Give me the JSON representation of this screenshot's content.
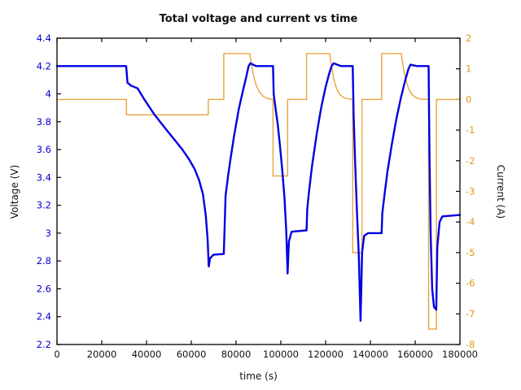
{
  "chart_data": {
    "type": "line",
    "title": "Total voltage and current vs time",
    "xlabel": "time (s)",
    "ylabel_left": "Voltage (V)",
    "ylabel_right": "Current (A)",
    "grid": false,
    "legend": "none",
    "xlim": [
      0,
      180000
    ],
    "ylim_left": [
      2.2,
      4.4
    ],
    "ylim_right": [
      -8,
      2
    ],
    "x_ticks": {
      "values": [
        0,
        20000,
        40000,
        60000,
        80000,
        100000,
        120000,
        140000,
        160000,
        180000
      ],
      "labels": [
        "0",
        "20000",
        "40000",
        "60000",
        "80000",
        "100000",
        "120000",
        "140000",
        "160000",
        "180000"
      ]
    },
    "y_left_ticks": {
      "values": [
        4.4,
        4.2,
        4.0,
        3.8,
        3.6,
        3.4,
        3.2,
        3.0,
        2.8,
        2.6,
        2.4,
        2.2
      ],
      "labels": [
        "4.4",
        "4.2",
        "4",
        "3.8",
        "3.6",
        "3.4",
        "3.2",
        "3",
        "2.8",
        "2.6",
        "2.4",
        "2.2"
      ]
    },
    "y_right_ticks": {
      "values": [
        2,
        1,
        0,
        -1,
        -2,
        -3,
        -4,
        -5,
        -6,
        -7,
        -8
      ],
      "labels": [
        "2",
        "1",
        "0",
        "-1",
        "-2",
        "-3",
        "-4",
        "-5",
        "-6",
        "-7",
        "-8"
      ]
    },
    "colors": {
      "voltage": "#0000e0",
      "current": "#e8a33d",
      "tick_label_left": "#0000cd",
      "tick_label_right": "#dd9a1d",
      "frame": "#000000",
      "title": "#111111"
    },
    "series": [
      {
        "name": "Total current",
        "axis": "right",
        "color": "#e8a33d",
        "width": 1.4,
        "points": [
          [
            0,
            0
          ],
          [
            31000,
            0
          ],
          [
            31000,
            -0.5
          ],
          [
            67600,
            -0.5
          ],
          [
            67600,
            0
          ],
          [
            74500,
            0
          ],
          [
            74500,
            1.5
          ],
          [
            86100,
            1.5
          ],
          [
            86900,
            1.12
          ],
          [
            87800,
            0.78
          ],
          [
            89000,
            0.45
          ],
          [
            90500,
            0.24
          ],
          [
            92000,
            0.11
          ],
          [
            94000,
            0.03
          ],
          [
            96500,
            0
          ],
          [
            96500,
            -2.5
          ],
          [
            103000,
            -2.5
          ],
          [
            103000,
            0
          ],
          [
            111500,
            0
          ],
          [
            111500,
            1.5
          ],
          [
            121800,
            1.5
          ],
          [
            122700,
            1.05
          ],
          [
            123700,
            0.65
          ],
          [
            124900,
            0.35
          ],
          [
            126300,
            0.16
          ],
          [
            128300,
            0.05
          ],
          [
            131000,
            0.01
          ],
          [
            132100,
            0
          ],
          [
            132100,
            -5
          ],
          [
            136200,
            -5
          ],
          [
            136200,
            0
          ],
          [
            145000,
            0
          ],
          [
            145000,
            1.5
          ],
          [
            153800,
            1.5
          ],
          [
            154700,
            1.05
          ],
          [
            155700,
            0.66
          ],
          [
            157000,
            0.36
          ],
          [
            158600,
            0.16
          ],
          [
            160600,
            0.05
          ],
          [
            162600,
            0.01
          ],
          [
            166000,
            0
          ],
          [
            166000,
            -7.5
          ],
          [
            169500,
            -7.5
          ],
          [
            169500,
            0
          ],
          [
            180000,
            0
          ]
        ]
      },
      {
        "name": "Total voltage",
        "axis": "left",
        "color": "#0000e0",
        "width": 2.4,
        "points": [
          [
            0,
            4.2
          ],
          [
            30900,
            4.2
          ],
          [
            31500,
            4.08
          ],
          [
            33000,
            4.06
          ],
          [
            36000,
            4.04
          ],
          [
            39000,
            3.96
          ],
          [
            43600,
            3.85
          ],
          [
            47000,
            3.78
          ],
          [
            50000,
            3.72
          ],
          [
            53000,
            3.66
          ],
          [
            56000,
            3.6
          ],
          [
            59000,
            3.53
          ],
          [
            61500,
            3.46
          ],
          [
            63500,
            3.38
          ],
          [
            65200,
            3.28
          ],
          [
            66500,
            3.12
          ],
          [
            67300,
            2.95
          ],
          [
            67800,
            2.76
          ],
          [
            68400,
            2.82
          ],
          [
            69900,
            2.845
          ],
          [
            74500,
            2.85
          ],
          [
            74800,
            3.0
          ],
          [
            75300,
            3.27
          ],
          [
            76500,
            3.42
          ],
          [
            77500,
            3.53
          ],
          [
            79000,
            3.69
          ],
          [
            81200,
            3.89
          ],
          [
            83000,
            4.02
          ],
          [
            84500,
            4.12
          ],
          [
            85600,
            4.2
          ],
          [
            86400,
            4.22
          ],
          [
            87600,
            4.21
          ],
          [
            89000,
            4.2
          ],
          [
            96500,
            4.2
          ],
          [
            96800,
            4.0
          ],
          [
            97600,
            3.9
          ],
          [
            98600,
            3.78
          ],
          [
            99600,
            3.63
          ],
          [
            100600,
            3.46
          ],
          [
            101600,
            3.26
          ],
          [
            102400,
            3.02
          ],
          [
            103000,
            2.71
          ],
          [
            103600,
            2.94
          ],
          [
            104800,
            3.01
          ],
          [
            111500,
            3.02
          ],
          [
            111800,
            3.17
          ],
          [
            112600,
            3.3
          ],
          [
            114000,
            3.49
          ],
          [
            116000,
            3.71
          ],
          [
            118000,
            3.9
          ],
          [
            120000,
            4.05
          ],
          [
            121500,
            4.14
          ],
          [
            122700,
            4.2
          ],
          [
            123600,
            4.22
          ],
          [
            125200,
            4.21
          ],
          [
            126800,
            4.2
          ],
          [
            132100,
            4.2
          ],
          [
            132500,
            3.85
          ],
          [
            133200,
            3.5
          ],
          [
            134000,
            3.15
          ],
          [
            134800,
            2.85
          ],
          [
            135600,
            2.37
          ],
          [
            136300,
            2.86
          ],
          [
            137200,
            2.98
          ],
          [
            139000,
            3.0
          ],
          [
            145000,
            3.0
          ],
          [
            145300,
            3.14
          ],
          [
            146200,
            3.26
          ],
          [
            147600,
            3.44
          ],
          [
            149600,
            3.64
          ],
          [
            151600,
            3.82
          ],
          [
            153600,
            3.97
          ],
          [
            155600,
            4.1
          ],
          [
            157000,
            4.18
          ],
          [
            157900,
            4.21
          ],
          [
            159200,
            4.205
          ],
          [
            160800,
            4.2
          ],
          [
            166000,
            4.2
          ],
          [
            166400,
            3.55
          ],
          [
            166900,
            3.0
          ],
          [
            167600,
            2.6
          ],
          [
            168400,
            2.47
          ],
          [
            169400,
            2.45
          ],
          [
            169900,
            2.9
          ],
          [
            170900,
            3.08
          ],
          [
            172200,
            3.12
          ],
          [
            180000,
            3.13
          ]
        ]
      }
    ]
  }
}
